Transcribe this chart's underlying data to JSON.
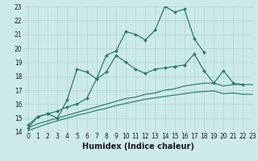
{
  "xlabel": "Humidex (Indice chaleur)",
  "x_values": [
    0,
    1,
    2,
    3,
    4,
    5,
    6,
    7,
    8,
    9,
    10,
    11,
    12,
    13,
    14,
    15,
    16,
    17,
    18,
    19,
    20,
    21,
    22,
    23
  ],
  "line1_y": [
    14.3,
    15.1,
    15.3,
    15.0,
    16.3,
    18.5,
    18.3,
    17.8,
    19.5,
    19.8,
    21.2,
    21.0,
    20.6,
    21.3,
    23.0,
    22.6,
    22.8,
    20.7,
    19.7,
    null,
    null,
    null,
    null,
    null
  ],
  "line3_y": [
    14.5,
    15.1,
    15.3,
    15.5,
    15.8,
    16.0,
    16.4,
    17.8,
    18.3,
    19.5,
    19.0,
    18.5,
    18.2,
    18.5,
    18.6,
    18.7,
    18.8,
    19.6,
    18.4,
    17.5,
    18.4,
    17.5,
    17.4,
    null
  ],
  "line4_y": [
    14.3,
    14.6,
    14.8,
    15.0,
    15.2,
    15.4,
    15.6,
    15.8,
    16.0,
    16.2,
    16.4,
    16.5,
    16.7,
    16.8,
    17.0,
    17.1,
    17.3,
    17.4,
    17.5,
    17.5,
    17.3,
    17.4,
    17.4,
    17.4
  ],
  "line5_y": [
    14.1,
    14.35,
    14.6,
    14.8,
    15.0,
    15.2,
    15.35,
    15.55,
    15.7,
    15.9,
    16.05,
    16.2,
    16.35,
    16.45,
    16.55,
    16.65,
    16.75,
    16.85,
    16.9,
    16.95,
    16.75,
    16.8,
    16.7,
    16.7
  ],
  "line_color": "#2a7a62",
  "bg_color": "#cdeaea",
  "grid_color": "#add4d4",
  "ylim": [
    14,
    23
  ],
  "xlim": [
    -0.5,
    23
  ],
  "yticks": [
    14,
    15,
    16,
    17,
    18,
    19,
    20,
    21,
    22,
    23
  ],
  "xticks": [
    0,
    1,
    2,
    3,
    4,
    5,
    6,
    7,
    8,
    9,
    10,
    11,
    12,
    13,
    14,
    15,
    16,
    17,
    18,
    19,
    20,
    21,
    22,
    23
  ],
  "xlabel_fontsize": 7,
  "tick_fontsize": 5.5
}
